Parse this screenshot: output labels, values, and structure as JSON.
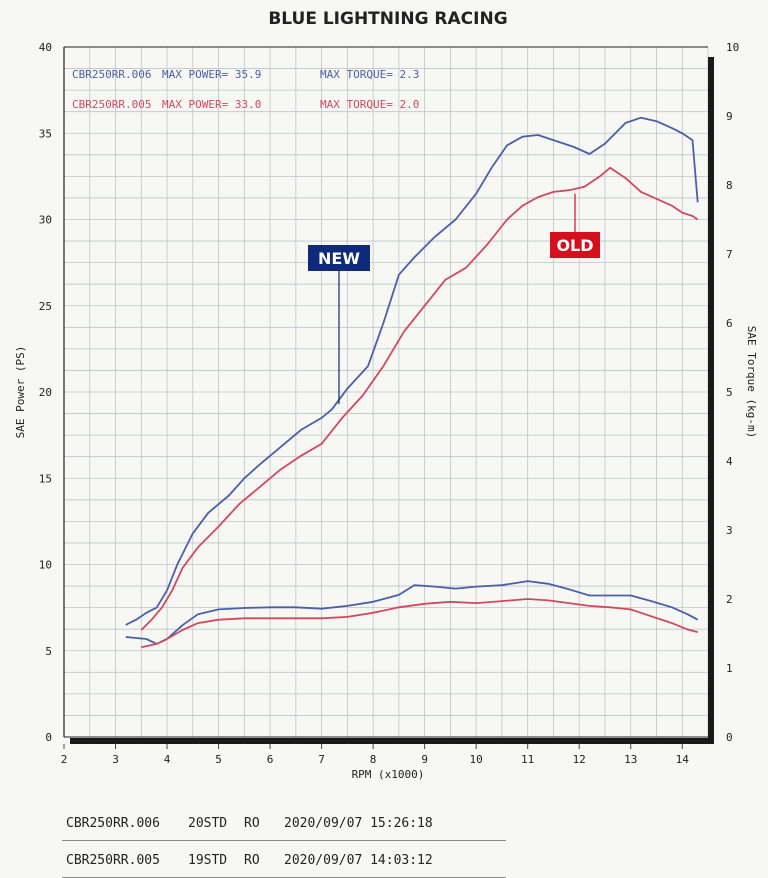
{
  "chart_data": {
    "type": "line",
    "title": "BLUE LIGHTNING RACING",
    "xlabel": "RPM (x1000)",
    "ylabel": "SAE Power (PS)",
    "y2label": "SAE Torque (kg-m)",
    "xlim": [
      2,
      14.5
    ],
    "ylim": [
      0,
      40
    ],
    "y2lim": [
      0,
      10
    ],
    "xticks": [
      2,
      3,
      4,
      5,
      6,
      7,
      8,
      9,
      10,
      11,
      12,
      13,
      14
    ],
    "yticks": [
      0,
      5,
      10,
      15,
      20,
      25,
      30,
      35,
      40
    ],
    "y2ticks": [
      0,
      1,
      2,
      3,
      4,
      5,
      6,
      7,
      8,
      9,
      10
    ],
    "grid": true,
    "colors": {
      "new": "#4a5fa8",
      "old": "#d0495e",
      "grid": "#bfc3cc",
      "axis": "#222222"
    },
    "series": [
      {
        "name": "CBR250RR.006 power",
        "axis": "left",
        "color": "#4a5fa8",
        "x": [
          3.2,
          3.4,
          3.6,
          3.8,
          4.0,
          4.2,
          4.5,
          4.8,
          5.2,
          5.5,
          5.8,
          6.2,
          6.6,
          7.0,
          7.2,
          7.5,
          7.9,
          8.2,
          8.5,
          8.8,
          9.2,
          9.6,
          10.0,
          10.3,
          10.6,
          10.9,
          11.2,
          11.5,
          11.9,
          12.2,
          12.5,
          12.9,
          13.2,
          13.5,
          13.8,
          14.0,
          14.2,
          14.3
        ],
        "y": [
          6.5,
          6.8,
          7.2,
          7.5,
          8.5,
          10.0,
          11.8,
          13.0,
          14.0,
          15.0,
          15.8,
          16.8,
          17.8,
          18.5,
          19.0,
          20.2,
          21.5,
          24.0,
          26.8,
          27.8,
          29.0,
          30.0,
          31.5,
          33.0,
          34.3,
          34.8,
          34.9,
          34.6,
          34.2,
          33.8,
          34.4,
          35.6,
          35.9,
          35.7,
          35.3,
          35.0,
          34.6,
          31.0
        ]
      },
      {
        "name": "CBR250RR.005 power",
        "axis": "left",
        "color": "#d0495e",
        "x": [
          3.5,
          3.7,
          3.9,
          4.1,
          4.3,
          4.6,
          5.0,
          5.4,
          5.8,
          6.2,
          6.6,
          7.0,
          7.4,
          7.8,
          8.2,
          8.6,
          9.0,
          9.4,
          9.8,
          10.2,
          10.6,
          10.9,
          11.2,
          11.5,
          11.8,
          12.1,
          12.4,
          12.6,
          12.9,
          13.2,
          13.5,
          13.8,
          14.0,
          14.2,
          14.3
        ],
        "y": [
          6.2,
          6.8,
          7.5,
          8.5,
          9.8,
          11.0,
          12.2,
          13.5,
          14.5,
          15.5,
          16.3,
          17.0,
          18.5,
          19.8,
          21.5,
          23.5,
          25.0,
          26.5,
          27.2,
          28.5,
          30.0,
          30.8,
          31.3,
          31.6,
          31.7,
          31.9,
          32.5,
          33.0,
          32.4,
          31.6,
          31.2,
          30.8,
          30.4,
          30.2,
          30.0
        ]
      },
      {
        "name": "CBR250RR.006 torque",
        "axis": "right",
        "color": "#4a5fa8",
        "x": [
          3.2,
          3.6,
          3.8,
          4.0,
          4.3,
          4.6,
          5.0,
          5.5,
          6.0,
          6.5,
          7.0,
          7.5,
          8.0,
          8.5,
          8.8,
          9.2,
          9.6,
          10.0,
          10.5,
          11.0,
          11.4,
          11.8,
          12.2,
          12.6,
          13.0,
          13.4,
          13.8,
          14.1,
          14.3
        ],
        "y": [
          1.45,
          1.42,
          1.35,
          1.42,
          1.62,
          1.78,
          1.85,
          1.87,
          1.88,
          1.88,
          1.86,
          1.9,
          1.96,
          2.06,
          2.2,
          2.18,
          2.15,
          2.18,
          2.2,
          2.26,
          2.22,
          2.14,
          2.05,
          2.05,
          2.05,
          1.97,
          1.88,
          1.78,
          1.7
        ]
      },
      {
        "name": "CBR250RR.005 torque",
        "axis": "right",
        "color": "#d0495e",
        "x": [
          3.5,
          3.8,
          4.0,
          4.3,
          4.6,
          5.0,
          5.5,
          6.0,
          6.5,
          7.0,
          7.5,
          8.0,
          8.5,
          9.0,
          9.5,
          10.0,
          10.5,
          11.0,
          11.4,
          11.8,
          12.2,
          12.6,
          13.0,
          13.4,
          13.8,
          14.1,
          14.3
        ],
        "y": [
          1.3,
          1.35,
          1.42,
          1.55,
          1.65,
          1.7,
          1.72,
          1.72,
          1.72,
          1.72,
          1.74,
          1.8,
          1.88,
          1.93,
          1.96,
          1.94,
          1.97,
          2.0,
          1.98,
          1.94,
          1.9,
          1.88,
          1.85,
          1.75,
          1.65,
          1.56,
          1.52
        ]
      }
    ],
    "legend": [
      {
        "model": "CBR250RR.006",
        "power": "MAX POWER= 35.9",
        "torque": "MAX TORQUE= 2.3",
        "color": "#4a5fa8"
      },
      {
        "model": "CBR250RR.005",
        "power": "MAX POWER= 33.0",
        "torque": "MAX TORQUE= 2.0",
        "color": "#d0495e"
      }
    ],
    "annotations": [
      {
        "text": "NEW",
        "color": "#0f2a7a",
        "points_to": "CBR250RR.006 power",
        "at_x": 7.3,
        "at_y": 19.3
      },
      {
        "text": "OLD",
        "color": "#d4101f",
        "points_to": "CBR250RR.005 power",
        "at_x": 11.8,
        "at_y": 31.5
      }
    ]
  },
  "records": [
    {
      "model": "CBR250RR.006",
      "std": "20STD",
      "ro": "RO",
      "datetime": "2020/09/07 15:26:18"
    },
    {
      "model": "CBR250RR.005",
      "std": "19STD",
      "ro": "RO",
      "datetime": "2020/09/07 14:03:12"
    }
  ]
}
